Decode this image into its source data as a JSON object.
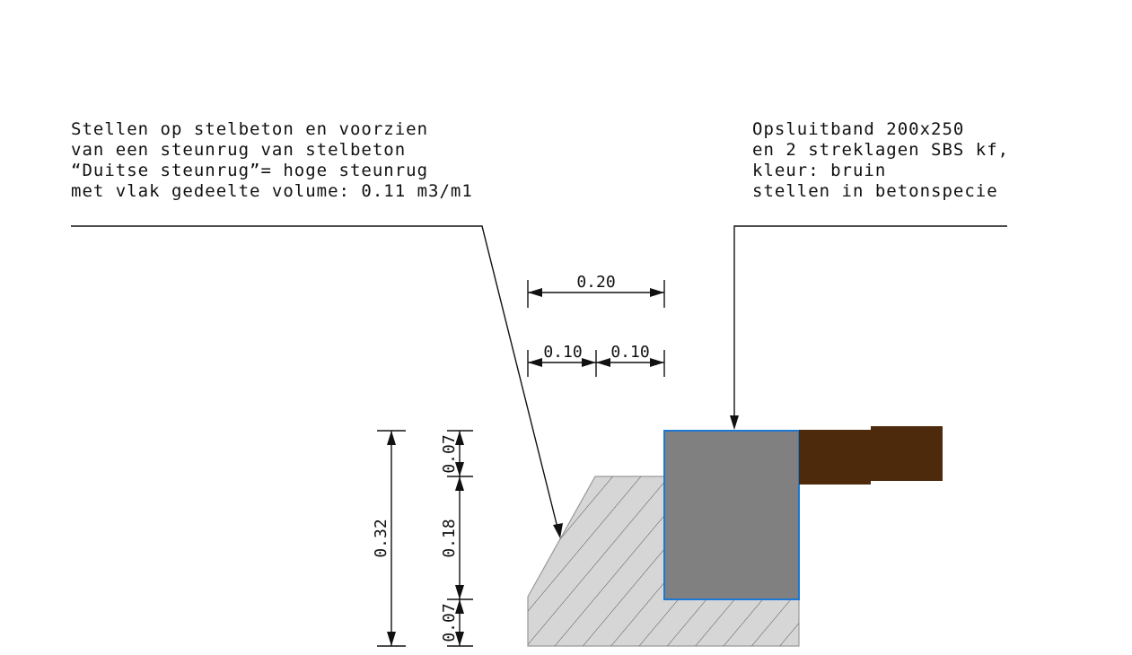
{
  "notes": [
    {
      "lines": [
        "Stellen op stelbeton en voorzien",
        "van een steunrug van stelbeton",
        "“Duitse steunrug”= hoge steunrug",
        "met vlak gedeelte volume: 0.11 m3/m1"
      ]
    },
    {
      "lines": [
        "Opsluitband 200x250",
        "en 2 streklagen SBS kf,",
        "kleur: bruin",
        "stellen in betonspecie"
      ]
    }
  ],
  "dimensions": {
    "top": [
      "0.20"
    ],
    "middle": [
      "0.10",
      "0.10"
    ],
    "total_height": [
      "0.32"
    ],
    "heights": [
      "0.07",
      "0.18",
      "0.07"
    ]
  }
}
